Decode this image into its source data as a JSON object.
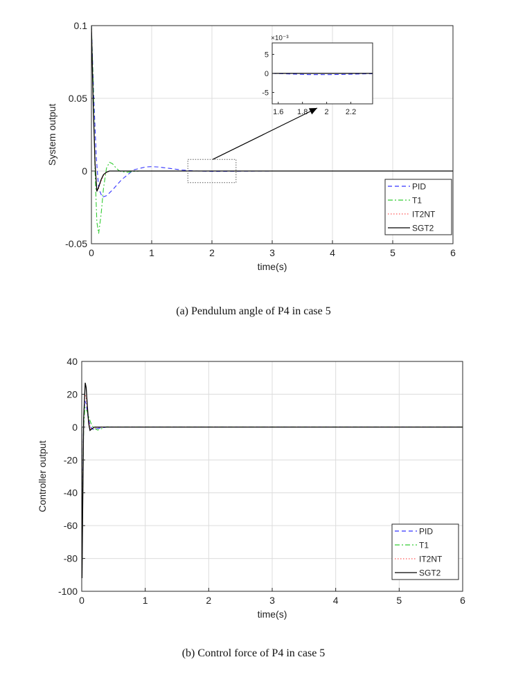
{
  "figure_captions": {
    "a": "(a) Pendulum angle of P4 in case 5",
    "b": "(b) Control force of P4 in case 5"
  },
  "colors": {
    "PID": "#3333ff",
    "T1": "#33cc33",
    "IT2NT": "#ff5555",
    "SGT2": "#000000",
    "grid": "#dcdcdc",
    "axis": "#262626"
  },
  "chart_data": [
    {
      "type": "line",
      "title": "",
      "xlabel": "time(s)",
      "ylabel": "System output",
      "xlim": [
        0,
        6
      ],
      "ylim": [
        -0.05,
        0.1
      ],
      "xticks": [
        0,
        1,
        2,
        3,
        4,
        5,
        6
      ],
      "xtick_labels": [
        "0",
        "1",
        "2",
        "3",
        "4",
        "5",
        "6"
      ],
      "yticks": [
        -0.05,
        0,
        0.05,
        0.1
      ],
      "ytick_labels": [
        "-0.05",
        "0",
        "0.05",
        "0.1"
      ],
      "grid": true,
      "legend_position": "bottom-right",
      "series": [
        {
          "name": "PID",
          "style": "dashed",
          "x": [
            0,
            0.04,
            0.08,
            0.12,
            0.18,
            0.25,
            0.35,
            0.5,
            0.7,
            0.9,
            1.0,
            1.1,
            1.3,
            1.5,
            1.7,
            2.0,
            2.5,
            3,
            4,
            5,
            6
          ],
          "y": [
            0.1,
            0.05,
            0.01,
            -0.012,
            -0.018,
            -0.017,
            -0.013,
            -0.006,
            0.0008,
            0.0028,
            0.003,
            0.0028,
            0.0018,
            0.0007,
            0.0001,
            -0.0003,
            -0.0001,
            0,
            0,
            0,
            0
          ]
        },
        {
          "name": "T1",
          "style": "dashdot",
          "x": [
            0,
            0.03,
            0.06,
            0.09,
            0.12,
            0.16,
            0.2,
            0.25,
            0.3,
            0.35,
            0.4,
            0.45,
            0.5,
            0.6,
            0.7,
            0.8,
            1.0,
            2.0,
            6
          ],
          "y": [
            0.1,
            0.06,
            0.0,
            -0.035,
            -0.043,
            -0.03,
            -0.012,
            0.002,
            0.006,
            0.005,
            0.0025,
            0.0005,
            -0.0005,
            -0.0008,
            -0.0003,
            0,
            0,
            0,
            0
          ]
        },
        {
          "name": "IT2NT",
          "style": "dotted",
          "x": [
            0,
            0.03,
            0.06,
            0.09,
            0.12,
            0.16,
            0.2,
            0.25,
            0.3,
            0.4,
            0.5,
            0.6,
            1.0,
            6
          ],
          "y": [
            0.1,
            0.05,
            0.005,
            -0.013,
            -0.012,
            -0.007,
            -0.003,
            -0.001,
            0,
            0,
            0,
            0,
            0,
            0
          ]
        },
        {
          "name": "SGT2",
          "style": "solid",
          "x": [
            0,
            0.03,
            0.06,
            0.09,
            0.12,
            0.16,
            0.2,
            0.25,
            0.3,
            0.4,
            0.5,
            1.0,
            6
          ],
          "y": [
            0.1,
            0.045,
            0.005,
            -0.014,
            -0.011,
            -0.006,
            -0.0025,
            -0.0008,
            0,
            0,
            0,
            0,
            0
          ]
        }
      ],
      "inset": {
        "xlim": [
          1.55,
          2.38
        ],
        "ylim": [
          -8,
          8
        ],
        "y_exponent_label": "×10⁻³",
        "xticks": [
          1.6,
          1.8,
          2,
          2.2
        ],
        "xtick_labels": [
          "1.6",
          "1.8",
          "2",
          "2.2"
        ],
        "yticks": [
          -5,
          0,
          5
        ],
        "ytick_labels": [
          "-5",
          "0",
          "5"
        ],
        "zoom_region": {
          "x": [
            1.6,
            2.4
          ],
          "y": [
            -0.008,
            0.008
          ]
        },
        "series": [
          {
            "name": "PID",
            "x": [
              1.55,
              1.7,
              1.85,
              2.0,
              2.15,
              2.3,
              2.38
            ],
            "y": [
              0.0,
              -0.15,
              -0.3,
              -0.32,
              -0.25,
              -0.12,
              -0.08
            ]
          },
          {
            "name": "T1",
            "x": [
              1.55,
              2.38
            ],
            "y": [
              0,
              0
            ]
          },
          {
            "name": "IT2NT",
            "x": [
              1.55,
              2.38
            ],
            "y": [
              0,
              0
            ]
          },
          {
            "name": "SGT2",
            "x": [
              1.55,
              2.38
            ],
            "y": [
              0,
              0
            ]
          }
        ]
      }
    },
    {
      "type": "line",
      "title": "",
      "xlabel": "time(s)",
      "ylabel": "Controller output",
      "xlim": [
        0,
        6
      ],
      "ylim": [
        -100,
        40
      ],
      "xticks": [
        0,
        1,
        2,
        3,
        4,
        5,
        6
      ],
      "xtick_labels": [
        "0",
        "1",
        "2",
        "3",
        "4",
        "5",
        "6"
      ],
      "yticks": [
        -100,
        -80,
        -60,
        -40,
        -20,
        0,
        20,
        40
      ],
      "ytick_labels": [
        "-100",
        "-80",
        "-60",
        "-40",
        "-20",
        "0",
        "20",
        "40"
      ],
      "grid": true,
      "legend_position": "bottom-right",
      "series": [
        {
          "name": "PID",
          "style": "dashed",
          "x": [
            0,
            0.005,
            0.015,
            0.03,
            0.05,
            0.07,
            0.1,
            0.14,
            0.18,
            0.25,
            0.4,
            0.6,
            6
          ],
          "y": [
            0,
            -85,
            -40,
            5,
            16,
            14,
            6,
            0,
            -1.5,
            -0.8,
            0,
            0,
            0
          ]
        },
        {
          "name": "T1",
          "style": "dashdot",
          "x": [
            0,
            0.005,
            0.015,
            0.03,
            0.05,
            0.08,
            0.12,
            0.16,
            0.2,
            0.25,
            0.3,
            0.35,
            0.4,
            0.5,
            6
          ],
          "y": [
            0,
            -88,
            -45,
            0,
            12,
            10,
            5,
            1,
            -0.8,
            -1.8,
            -1.2,
            -0.2,
            0.2,
            0,
            0
          ]
        },
        {
          "name": "IT2NT",
          "style": "dotted",
          "x": [
            0,
            0.005,
            0.015,
            0.03,
            0.05,
            0.07,
            0.1,
            0.14,
            0.2,
            0.3,
            6
          ],
          "y": [
            0,
            -90,
            -45,
            5,
            20,
            18,
            6,
            -1,
            -0.5,
            0,
            0
          ]
        },
        {
          "name": "SGT2",
          "style": "solid",
          "x": [
            0,
            0.005,
            0.015,
            0.03,
            0.055,
            0.07,
            0.09,
            0.11,
            0.13,
            0.16,
            0.2,
            0.3,
            6
          ],
          "y": [
            0,
            -92,
            -50,
            5,
            27,
            24,
            12,
            2,
            -2,
            -1,
            0,
            0,
            0
          ]
        }
      ]
    }
  ]
}
